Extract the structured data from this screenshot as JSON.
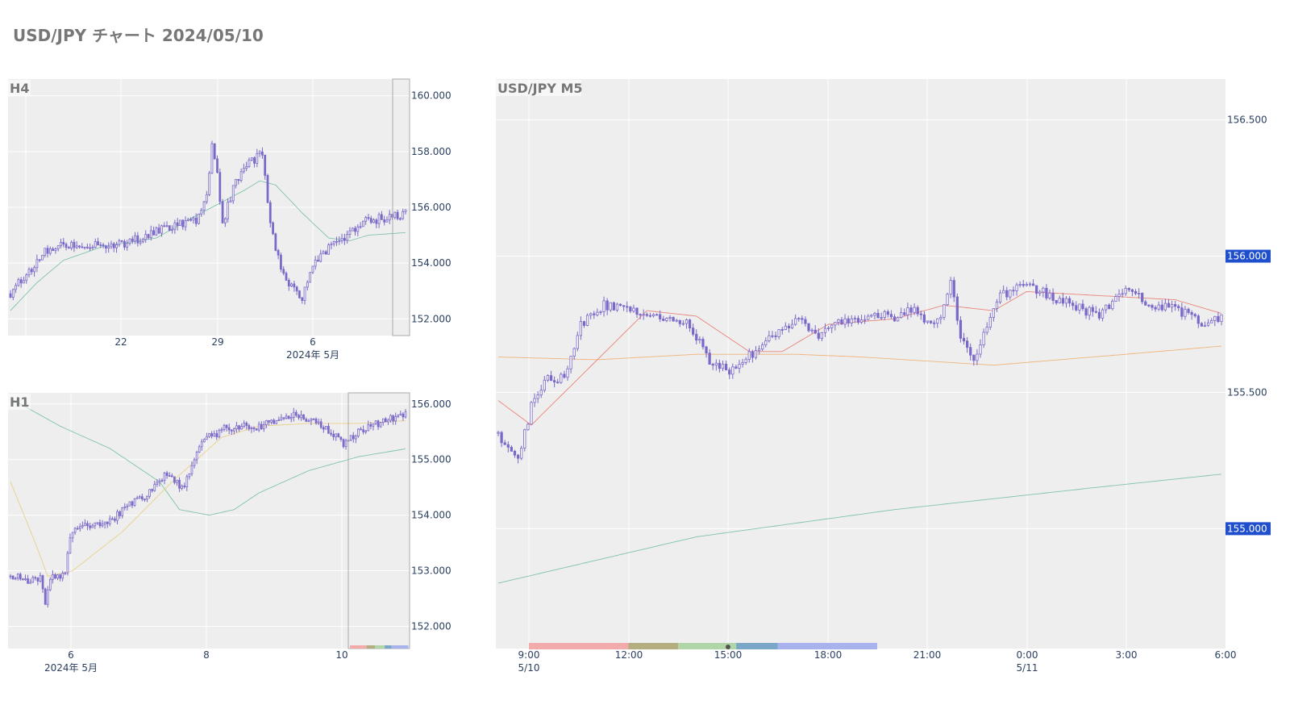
{
  "page": {
    "title": "USD/JPY チャート 2024/05/10"
  },
  "colors": {
    "plot_bg": "#eeeeee",
    "grid": "#ffffff",
    "candle": "#7b68c8",
    "sma_short": "#e8847a",
    "sma_mid": "#f0b37a",
    "sma_long": "#7fc4a6",
    "sma_h1_mid": "#e8d08a",
    "badge": "#1f4fcc"
  },
  "chart_data": [
    {
      "id": "h4",
      "type": "candlestick",
      "title": "H4",
      "ylim": [
        151.4,
        160.6
      ],
      "yticks": [
        152,
        154,
        156,
        158,
        160
      ],
      "ytick_labels": [
        "152.000",
        "154.000",
        "156.000",
        "158.000",
        "160.000"
      ],
      "xtick_labels": [
        "22",
        "29",
        "6"
      ],
      "x_sub_label": "2024年 5月",
      "anchors": [
        [
          0,
          152.9
        ],
        [
          6,
          153.6
        ],
        [
          12,
          154.3
        ],
        [
          15,
          154.6
        ],
        [
          20,
          154.6
        ],
        [
          30,
          154.6
        ],
        [
          45,
          154.75
        ],
        [
          60,
          155.3
        ],
        [
          70,
          155.5
        ],
        [
          74,
          156.5
        ],
        [
          76,
          158.2
        ],
        [
          78,
          157.1
        ],
        [
          80,
          155.4
        ],
        [
          84,
          156.7
        ],
        [
          90,
          157.6
        ],
        [
          95,
          157.9
        ],
        [
          98,
          155.5
        ],
        [
          100,
          154.5
        ],
        [
          103,
          153.5
        ],
        [
          110,
          152.8
        ],
        [
          113,
          153.8
        ],
        [
          120,
          154.5
        ],
        [
          128,
          155.1
        ],
        [
          133,
          155.5
        ],
        [
          140,
          155.6
        ],
        [
          150,
          155.8
        ]
      ],
      "ma_long": [
        [
          0,
          152.3
        ],
        [
          10,
          153.3
        ],
        [
          20,
          154.1
        ],
        [
          35,
          154.6
        ],
        [
          55,
          154.9
        ],
        [
          70,
          155.7
        ],
        [
          88,
          156.6
        ],
        [
          94,
          156.95
        ],
        [
          100,
          156.8
        ],
        [
          110,
          155.8
        ],
        [
          120,
          154.9
        ],
        [
          128,
          154.8
        ],
        [
          135,
          155.0
        ],
        [
          150,
          155.1
        ]
      ]
    },
    {
      "id": "h1",
      "type": "candlestick",
      "title": "H1",
      "ylim": [
        151.6,
        156.2
      ],
      "yticks": [
        152,
        153,
        154,
        155,
        156
      ],
      "ytick_labels": [
        "152.000",
        "153.000",
        "154.000",
        "155.000",
        "156.000"
      ],
      "xtick_labels": [
        "6",
        "8",
        "10"
      ],
      "x_sub_label": "2024年 5月",
      "anchors": [
        [
          0,
          152.9
        ],
        [
          10,
          152.8
        ],
        [
          12,
          152.9
        ],
        [
          14,
          152.4
        ],
        [
          16,
          152.9
        ],
        [
          22,
          152.9
        ],
        [
          24,
          153.6
        ],
        [
          28,
          153.8
        ],
        [
          30,
          153.8
        ],
        [
          40,
          153.9
        ],
        [
          48,
          154.2
        ],
        [
          52,
          154.3
        ],
        [
          56,
          154.4
        ],
        [
          62,
          154.7
        ],
        [
          70,
          154.5
        ],
        [
          75,
          155.2
        ],
        [
          80,
          155.4
        ],
        [
          86,
          155.55
        ],
        [
          92,
          155.6
        ],
        [
          100,
          155.6
        ],
        [
          108,
          155.7
        ],
        [
          115,
          155.8
        ],
        [
          122,
          155.7
        ],
        [
          128,
          155.5
        ],
        [
          134,
          155.3
        ],
        [
          140,
          155.5
        ],
        [
          150,
          155.7
        ],
        [
          158,
          155.8
        ],
        [
          160,
          155.8
        ]
      ],
      "ma_long": [
        [
          0,
          156.1
        ],
        [
          20,
          155.6
        ],
        [
          40,
          155.2
        ],
        [
          60,
          154.6
        ],
        [
          68,
          154.1
        ],
        [
          80,
          154.0
        ],
        [
          90,
          154.1
        ],
        [
          100,
          154.4
        ],
        [
          120,
          154.8
        ],
        [
          140,
          155.05
        ],
        [
          160,
          155.2
        ]
      ],
      "ma_mid": [
        [
          0,
          154.6
        ],
        [
          10,
          153.5
        ],
        [
          15,
          152.9
        ],
        [
          25,
          153.0
        ],
        [
          45,
          153.7
        ],
        [
          65,
          154.6
        ],
        [
          85,
          155.4
        ],
        [
          100,
          155.6
        ],
        [
          120,
          155.65
        ],
        [
          140,
          155.65
        ],
        [
          160,
          155.7
        ]
      ]
    },
    {
      "id": "m5",
      "type": "candlestick",
      "title": "USD/JPY M5",
      "ylim": [
        154.56,
        156.65
      ],
      "yticks": [
        155.0,
        155.5,
        156.0,
        156.5
      ],
      "ytick_labels": [
        "155.000",
        "155.500",
        "156.000",
        "156.500"
      ],
      "highlight_labels": [
        "156.000",
        "155.000"
      ],
      "xtick_labels": [
        "9:00",
        "12:00",
        "15:00",
        "18:00",
        "21:00",
        "0:00",
        "3:00",
        "6:00"
      ],
      "x_sub_labels": [
        "5/10",
        "5/11"
      ],
      "anchors": [
        [
          0,
          155.35
        ],
        [
          6,
          155.25
        ],
        [
          10,
          155.45
        ],
        [
          14,
          155.55
        ],
        [
          20,
          155.55
        ],
        [
          25,
          155.75
        ],
        [
          32,
          155.82
        ],
        [
          38,
          155.8
        ],
        [
          45,
          155.78
        ],
        [
          52,
          155.78
        ],
        [
          58,
          155.75
        ],
        [
          64,
          155.62
        ],
        [
          70,
          155.58
        ],
        [
          74,
          155.62
        ],
        [
          78,
          155.65
        ],
        [
          84,
          155.72
        ],
        [
          92,
          155.78
        ],
        [
          96,
          155.7
        ],
        [
          104,
          155.76
        ],
        [
          112,
          155.78
        ],
        [
          120,
          155.78
        ],
        [
          126,
          155.8
        ],
        [
          130,
          155.75
        ],
        [
          134,
          155.78
        ],
        [
          137,
          155.9
        ],
        [
          140,
          155.7
        ],
        [
          144,
          155.62
        ],
        [
          148,
          155.75
        ],
        [
          152,
          155.85
        ],
        [
          158,
          155.9
        ],
        [
          166,
          155.86
        ],
        [
          174,
          155.82
        ],
        [
          182,
          155.78
        ],
        [
          186,
          155.84
        ],
        [
          190,
          155.88
        ],
        [
          198,
          155.82
        ],
        [
          206,
          155.8
        ],
        [
          214,
          155.75
        ],
        [
          219,
          155.78
        ]
      ],
      "ma_short": [
        [
          0,
          155.47
        ],
        [
          10,
          155.38
        ],
        [
          30,
          155.62
        ],
        [
          45,
          155.8
        ],
        [
          60,
          155.78
        ],
        [
          76,
          155.65
        ],
        [
          86,
          155.65
        ],
        [
          100,
          155.75
        ],
        [
          120,
          155.77
        ],
        [
          135,
          155.82
        ],
        [
          150,
          155.8
        ],
        [
          160,
          155.87
        ],
        [
          175,
          155.86
        ],
        [
          190,
          155.85
        ],
        [
          205,
          155.84
        ],
        [
          219,
          155.79
        ]
      ],
      "ma_mid": [
        [
          0,
          155.63
        ],
        [
          30,
          155.62
        ],
        [
          60,
          155.64
        ],
        [
          90,
          155.64
        ],
        [
          110,
          155.63
        ],
        [
          150,
          155.6
        ],
        [
          190,
          155.64
        ],
        [
          219,
          155.67
        ]
      ],
      "ma_long": [
        [
          0,
          154.8
        ],
        [
          60,
          154.97
        ],
        [
          120,
          155.07
        ],
        [
          180,
          155.15
        ],
        [
          219,
          155.2
        ]
      ]
    }
  ],
  "sessions": [
    {
      "from": 0.0,
      "to": 3.0,
      "color": "#f2aaaa"
    },
    {
      "from": 3.0,
      "to": 4.5,
      "color": "#b3ad80"
    },
    {
      "from": 4.5,
      "to": 6.25,
      "color": "#b0d6a8"
    },
    {
      "from": 6.25,
      "to": 7.5,
      "color": "#7aa6c8"
    },
    {
      "from": 7.5,
      "to": 10.5,
      "color": "#a8b3ee"
    }
  ]
}
